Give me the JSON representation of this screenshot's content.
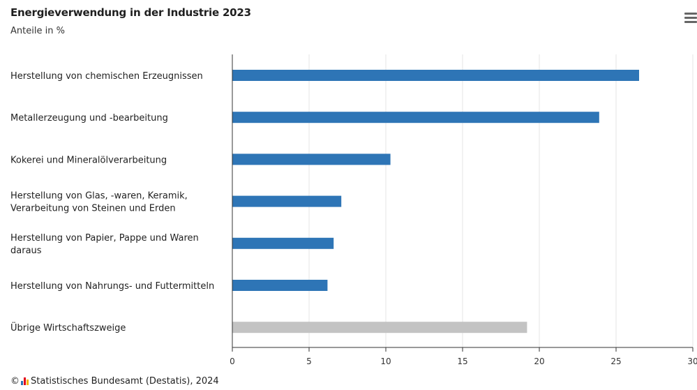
{
  "chart_data": {
    "type": "bar",
    "orientation": "horizontal",
    "title": "Energieverwendung in der Industrie 2023",
    "subtitle": "Anteile in %",
    "categories": [
      [
        "Herstellung von chemischen Erzeugnissen"
      ],
      [
        "Metallerzeugung und -bearbeitung"
      ],
      [
        "Kokerei und Mineralölverarbeitung"
      ],
      [
        "Herstellung von Glas, -waren, Keramik,",
        "Verarbeitung von Steinen und Erden"
      ],
      [
        "Herstellung von Papier, Pappe und Waren",
        "daraus"
      ],
      [
        "Herstellung von Nahrungs- und Futtermitteln"
      ],
      [
        "Übrige Wirtschaftszweige"
      ]
    ],
    "values": [
      26.5,
      23.9,
      10.3,
      7.1,
      6.6,
      6.2,
      19.2
    ],
    "colors": [
      "#2e75b6",
      "#2e75b6",
      "#2e75b6",
      "#2e75b6",
      "#2e75b6",
      "#2e75b6",
      "#c3c3c3"
    ],
    "xlim": [
      0,
      30
    ],
    "xticks": [
      "0",
      "5",
      "10",
      "15",
      "20",
      "25",
      "30"
    ],
    "grid": true,
    "legend": "none"
  },
  "credits": {
    "copyright": "©",
    "text": "Statistisches Bundesamt (Destatis), 2024"
  },
  "menu": {
    "icon": "hamburger-menu-icon"
  }
}
